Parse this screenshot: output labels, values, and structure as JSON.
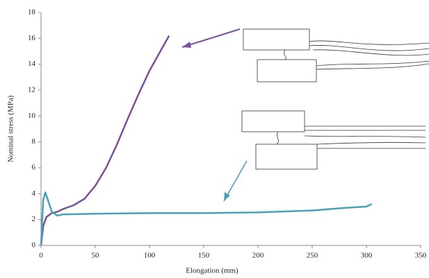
{
  "chart_data": {
    "type": "line",
    "x_label": "Elongation (mm)",
    "y_label": "Nominal stress (MPa)",
    "xlim": [
      0,
      350
    ],
    "xticks": [
      0,
      50,
      100,
      150,
      200,
      250,
      300,
      350
    ],
    "ylim": [
      0,
      18
    ],
    "yticks": [
      0,
      2,
      4,
      6,
      8,
      10,
      12,
      14,
      16,
      18
    ],
    "series": [
      {
        "color": "#7b4f9a",
        "x": [
          0,
          2,
          5,
          10,
          15,
          20,
          30,
          40,
          50,
          60,
          70,
          80,
          90,
          100,
          110,
          118
        ],
        "values": [
          0,
          1.5,
          2.2,
          2.5,
          2.6,
          2.8,
          3.1,
          3.6,
          4.6,
          6.0,
          7.8,
          9.8,
          11.7,
          13.5,
          15.0,
          16.2
        ]
      },
      {
        "color": "#4aa1b5",
        "x": [
          0,
          2,
          4,
          6,
          10,
          15,
          20,
          50,
          100,
          150,
          200,
          250,
          280,
          300,
          305
        ],
        "values": [
          0,
          3.5,
          4.1,
          3.6,
          2.6,
          2.3,
          2.4,
          2.45,
          2.5,
          2.5,
          2.55,
          2.7,
          2.9,
          3.0,
          3.2
        ]
      }
    ]
  }
}
